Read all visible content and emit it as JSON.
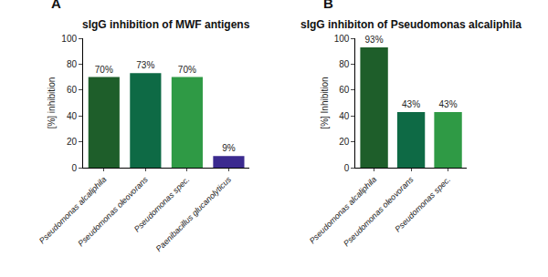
{
  "chart_data": [
    {
      "type": "bar",
      "title": "sIgG inhibition of MWF antigens",
      "annotations": [
        {
          "text": "A"
        }
      ],
      "y_label": "[%] inhibition",
      "categories": [
        "Pseudomonas alcaliphila",
        "Pseudomonas oleovorans",
        "Pseudomonas spec.",
        "Paenibacillus glucanolyticus"
      ],
      "values": [
        70,
        73,
        70,
        9
      ],
      "value_labels": [
        "70%",
        "73%",
        "70%",
        "9%"
      ],
      "colors": [
        "#1e5e2a",
        "#0e6a45",
        "#2f9a45",
        "#3b2a8f"
      ],
      "ylim": [
        0,
        100
      ],
      "yticks": [
        0,
        20,
        40,
        60,
        80,
        100
      ],
      "grid": false,
      "data_labels": true
    },
    {
      "type": "bar",
      "title": "sIgG inhibiton of Pseudomonas alcaliphila",
      "annotations": [
        {
          "text": "B"
        }
      ],
      "y_label": "[%] Inhibition",
      "categories": [
        "Pseudomonas alcaliphila",
        "Pseudomonas oleovorans",
        "Pseudomonas spec."
      ],
      "values": [
        93,
        43,
        43
      ],
      "value_labels": [
        "93%",
        "43%",
        "43%"
      ],
      "colors": [
        "#1e5e2a",
        "#0e6a45",
        "#2f9a45"
      ],
      "ylim": [
        0,
        100
      ],
      "yticks": [
        0,
        20,
        40,
        60,
        80,
        100
      ],
      "grid": false,
      "data_labels": true
    }
  ]
}
